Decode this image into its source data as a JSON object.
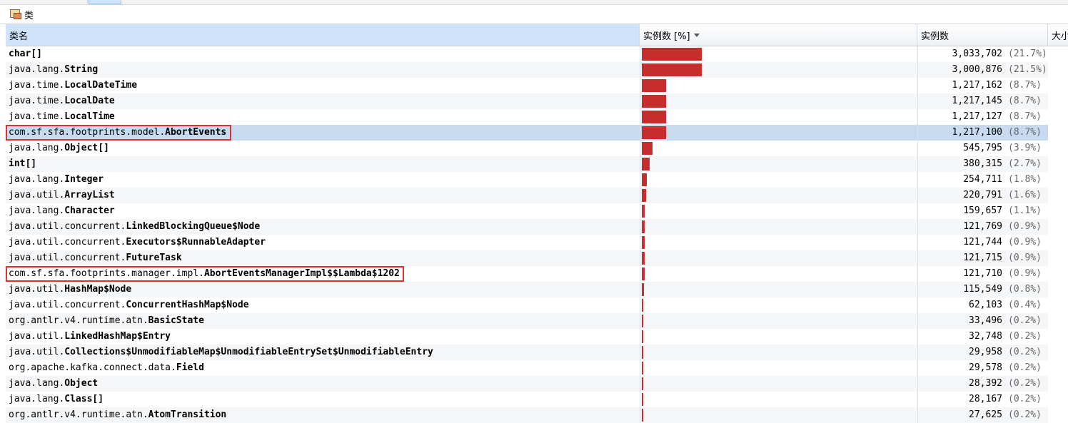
{
  "section": {
    "title": "类",
    "icon": "classes-icon"
  },
  "columns": {
    "name": "类名",
    "instances_pct": "实例数 [%]",
    "instances": "实例数",
    "size": "大小"
  },
  "colors": {
    "bar": "#c62e2e",
    "selected_row": "#c8daf0",
    "highlight": "#e03030"
  },
  "rows": [
    {
      "pkg": "",
      "cls": "char[]",
      "count": "3,033,702",
      "pct": "(21.7%)",
      "ratio": 0.217
    },
    {
      "pkg": "java.lang.",
      "cls": "String",
      "count": "3,000,876",
      "pct": "(21.5%)",
      "ratio": 0.215
    },
    {
      "pkg": "java.time.",
      "cls": "LocalDateTime",
      "count": "1,217,162",
      "pct": "(8.7%)",
      "ratio": 0.087
    },
    {
      "pkg": "java.time.",
      "cls": "LocalDate",
      "count": "1,217,145",
      "pct": "(8.7%)",
      "ratio": 0.087
    },
    {
      "pkg": "java.time.",
      "cls": "LocalTime",
      "count": "1,217,127",
      "pct": "(8.7%)",
      "ratio": 0.087
    },
    {
      "pkg": "com.sf.sfa.footprints.model.",
      "cls": "AbortEvents",
      "count": "1,217,100",
      "pct": "(8.7%)",
      "ratio": 0.087,
      "selected": true,
      "highlight": true
    },
    {
      "pkg": "java.lang.",
      "cls": "Object[]",
      "count": "545,795",
      "pct": "(3.9%)",
      "ratio": 0.039
    },
    {
      "pkg": "",
      "cls": "int[]",
      "count": "380,315",
      "pct": "(2.7%)",
      "ratio": 0.027
    },
    {
      "pkg": "java.lang.",
      "cls": "Integer",
      "count": "254,711",
      "pct": "(1.8%)",
      "ratio": 0.018
    },
    {
      "pkg": "java.util.",
      "cls": "ArrayList",
      "count": "220,791",
      "pct": "(1.6%)",
      "ratio": 0.016
    },
    {
      "pkg": "java.lang.",
      "cls": "Character",
      "count": "159,657",
      "pct": "(1.1%)",
      "ratio": 0.011
    },
    {
      "pkg": "java.util.concurrent.",
      "cls": "LinkedBlockingQueue$Node",
      "count": "121,769",
      "pct": "(0.9%)",
      "ratio": 0.009
    },
    {
      "pkg": "java.util.concurrent.",
      "cls": "Executors$RunnableAdapter",
      "count": "121,744",
      "pct": "(0.9%)",
      "ratio": 0.009
    },
    {
      "pkg": "java.util.concurrent.",
      "cls": "FutureTask",
      "count": "121,715",
      "pct": "(0.9%)",
      "ratio": 0.009
    },
    {
      "pkg": "com.sf.sfa.footprints.manager.impl.",
      "cls": "AbortEventsManagerImpl$$Lambda$1202",
      "count": "121,710",
      "pct": "(0.9%)",
      "ratio": 0.009,
      "highlight": true
    },
    {
      "pkg": "java.util.",
      "cls": "HashMap$Node",
      "count": "115,549",
      "pct": "(0.8%)",
      "ratio": 0.008
    },
    {
      "pkg": "java.util.concurrent.",
      "cls": "ConcurrentHashMap$Node",
      "count": "62,103",
      "pct": "(0.4%)",
      "ratio": 0.004
    },
    {
      "pkg": "org.antlr.v4.runtime.atn.",
      "cls": "BasicState",
      "count": "33,496",
      "pct": "(0.2%)",
      "ratio": 0.002
    },
    {
      "pkg": "java.util.",
      "cls": "LinkedHashMap$Entry",
      "count": "32,748",
      "pct": "(0.2%)",
      "ratio": 0.002
    },
    {
      "pkg": "java.util.",
      "cls": "Collections$UnmodifiableMap$UnmodifiableEntrySet$UnmodifiableEntry",
      "count": "29,958",
      "pct": "(0.2%)",
      "ratio": 0.002
    },
    {
      "pkg": "org.apache.kafka.connect.data.",
      "cls": "Field",
      "count": "29,578",
      "pct": "(0.2%)",
      "ratio": 0.002
    },
    {
      "pkg": "java.lang.",
      "cls": "Object",
      "count": "28,392",
      "pct": "(0.2%)",
      "ratio": 0.002
    },
    {
      "pkg": "java.lang.",
      "cls": "Class[]",
      "count": "28,167",
      "pct": "(0.2%)",
      "ratio": 0.002
    },
    {
      "pkg": "org.antlr.v4.runtime.atn.",
      "cls": "AtomTransition",
      "count": "27,625",
      "pct": "(0.2%)",
      "ratio": 0.002
    }
  ]
}
